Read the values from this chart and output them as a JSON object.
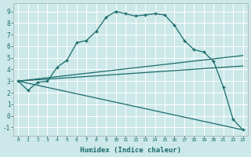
{
  "xlabel": "Humidex (Indice chaleur)",
  "bg_color": "#cce8e8",
  "grid_color": "#ffffff",
  "line_color": "#1a6b6b",
  "xlim": [
    -0.5,
    23.5
  ],
  "ylim": [
    -1.7,
    9.7
  ],
  "xticks": [
    0,
    1,
    2,
    3,
    4,
    5,
    6,
    7,
    8,
    9,
    10,
    11,
    12,
    13,
    14,
    15,
    16,
    17,
    18,
    19,
    20,
    21,
    22,
    23
  ],
  "yticks": [
    -1,
    0,
    1,
    2,
    3,
    4,
    5,
    6,
    7,
    8,
    9
  ],
  "series": [
    {
      "x": [
        0,
        1,
        2,
        3,
        4,
        5,
        6,
        7,
        8,
        9,
        10,
        11,
        12,
        13,
        14,
        15,
        16,
        17,
        18,
        19,
        20,
        21,
        22,
        23
      ],
      "y": [
        3.0,
        2.2,
        2.9,
        3.0,
        4.2,
        4.8,
        6.3,
        6.5,
        7.3,
        8.5,
        9.0,
        8.8,
        8.6,
        8.7,
        8.8,
        8.7,
        7.8,
        6.5,
        5.7,
        5.5,
        4.7,
        2.5,
        -0.3,
        -1.2
      ],
      "marker": "+"
    },
    {
      "x": [
        0,
        23
      ],
      "y": [
        3.0,
        5.2
      ],
      "marker": null
    },
    {
      "x": [
        0,
        23
      ],
      "y": [
        3.0,
        4.3
      ],
      "marker": null
    },
    {
      "x": [
        0,
        23
      ],
      "y": [
        3.0,
        -1.2
      ],
      "marker": null
    }
  ]
}
